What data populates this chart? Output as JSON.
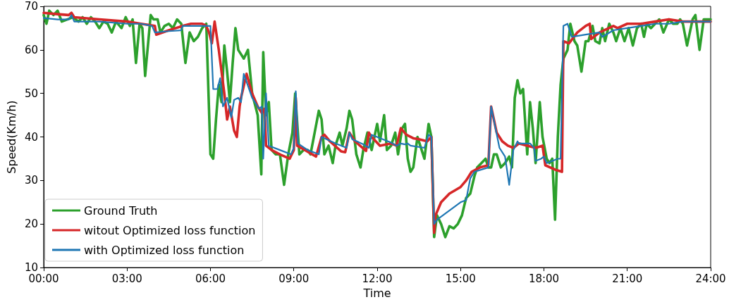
{
  "chart_data": {
    "type": "line",
    "xlabel": "Time",
    "ylabel": "Speed(Km/h)",
    "xlim": [
      0,
      24
    ],
    "ylim": [
      10,
      70
    ],
    "xticks": [
      {
        "value": 0,
        "label": "00:00"
      },
      {
        "value": 3,
        "label": "03:00"
      },
      {
        "value": 6,
        "label": "06:00"
      },
      {
        "value": 9,
        "label": "09:00"
      },
      {
        "value": 12,
        "label": "12:00"
      },
      {
        "value": 15,
        "label": "15:00"
      },
      {
        "value": 18,
        "label": "18:00"
      },
      {
        "value": 21,
        "label": "21:00"
      },
      {
        "value": 24,
        "label": "24:00"
      }
    ],
    "yticks": [
      10,
      20,
      30,
      40,
      50,
      60,
      70
    ],
    "grid": false,
    "legend": "bottom left",
    "marker": "none",
    "line_style": "solid",
    "series": [
      {
        "name": "Ground Truth",
        "color": "#2ca02c",
        "x": [
          0,
          0.1,
          0.2,
          0.35,
          0.5,
          0.65,
          0.85,
          1.05,
          1.25,
          1.4,
          1.55,
          1.7,
          1.85,
          2.0,
          2.15,
          2.3,
          2.45,
          2.6,
          2.8,
          2.95,
          3.1,
          3.2,
          3.32,
          3.45,
          3.55,
          3.65,
          3.85,
          3.95,
          4.1,
          4.2,
          4.35,
          4.5,
          4.65,
          4.8,
          4.95,
          5.1,
          5.25,
          5.4,
          5.55,
          5.7,
          5.85,
          6.0,
          6.1,
          6.2,
          6.3,
          6.4,
          6.5,
          6.6,
          6.7,
          6.8,
          6.9,
          7.0,
          7.2,
          7.35,
          7.5,
          7.7,
          7.83,
          7.9,
          8.0,
          8.1,
          8.2,
          8.35,
          8.5,
          8.65,
          8.8,
          8.95,
          9.05,
          9.2,
          9.35,
          9.5,
          9.6,
          9.75,
          9.9,
          10.0,
          10.1,
          10.25,
          10.4,
          10.5,
          10.65,
          10.75,
          10.9,
          11.0,
          11.1,
          11.25,
          11.4,
          11.5,
          11.65,
          11.8,
          11.9,
          12.0,
          12.1,
          12.25,
          12.35,
          12.5,
          12.65,
          12.75,
          12.9,
          13.0,
          13.1,
          13.2,
          13.3,
          13.45,
          13.6,
          13.7,
          13.85,
          13.95,
          14.05,
          14.15,
          14.3,
          14.45,
          14.6,
          14.75,
          14.9,
          15.05,
          15.2,
          15.35,
          15.5,
          15.6,
          15.75,
          15.9,
          16.0,
          16.1,
          16.2,
          16.3,
          16.45,
          16.6,
          16.75,
          16.85,
          16.95,
          17.05,
          17.15,
          17.25,
          17.4,
          17.5,
          17.6,
          17.7,
          17.85,
          17.95,
          18.1,
          18.2,
          18.3,
          18.4,
          18.5,
          18.6,
          18.7,
          18.85,
          18.95,
          19.1,
          19.2,
          19.35,
          19.5,
          19.6,
          19.75,
          19.85,
          20.0,
          20.1,
          20.2,
          20.35,
          20.5,
          20.6,
          20.75,
          20.9,
          21.05,
          21.2,
          21.35,
          21.5,
          21.6,
          21.7,
          21.85,
          22.0,
          22.15,
          22.3,
          22.5,
          22.65,
          22.8,
          22.9,
          23.0,
          23.15,
          23.35,
          23.45,
          23.6,
          23.75,
          24
        ],
        "values": [
          68,
          66,
          69,
          68,
          69,
          66.5,
          67,
          67.5,
          66.5,
          67.5,
          66,
          67.5,
          66.5,
          65,
          66.5,
          66,
          64,
          66.5,
          65,
          67.5,
          65.5,
          67,
          57,
          66,
          65,
          54,
          68,
          67,
          67,
          64,
          65.5,
          66,
          65,
          67,
          66,
          57,
          64,
          62,
          63,
          65,
          66,
          36,
          35,
          44,
          52,
          48,
          61,
          55,
          48,
          57,
          65,
          60,
          58,
          60,
          50,
          45,
          31.4,
          59.5,
          45,
          48,
          37,
          36,
          36,
          29,
          36,
          41,
          50,
          36,
          37,
          37,
          36,
          41,
          46,
          44,
          36,
          38,
          34,
          38,
          41,
          38,
          42,
          46,
          44,
          36,
          33,
          37,
          41,
          37,
          40,
          43,
          39,
          45,
          37,
          38,
          41,
          36,
          42,
          43,
          35,
          32,
          33,
          40,
          37,
          35,
          43,
          40,
          17,
          22,
          20,
          17,
          19.5,
          19,
          20,
          22,
          26,
          27,
          31,
          33,
          34,
          35,
          33,
          33,
          36,
          36,
          33,
          34,
          35.5,
          33,
          49,
          53,
          50,
          51,
          36,
          48,
          42,
          34,
          48,
          40,
          35,
          34,
          35,
          21,
          40,
          52,
          58,
          60,
          66,
          62,
          61,
          55,
          62,
          62,
          65.5,
          62,
          61.5,
          65,
          62,
          66,
          64,
          62,
          65,
          62,
          65,
          61,
          65,
          66,
          63,
          66,
          65,
          66,
          67,
          64,
          67,
          66,
          66,
          67,
          66,
          61,
          67,
          68,
          60,
          67,
          67
        ]
      },
      {
        "name": "witout Optimized loss function",
        "color": "#d62728",
        "x": [
          0,
          0.5,
          0.9,
          1.0,
          1.1,
          2.0,
          3.0,
          3.5,
          4.0,
          4.05,
          4.5,
          5.0,
          5.3,
          5.7,
          5.85,
          5.95,
          6.05,
          6.15,
          6.3,
          6.5,
          6.6,
          6.7,
          6.85,
          6.95,
          7.05,
          7.1,
          7.3,
          7.5,
          7.7,
          7.85,
          7.95,
          8.0,
          8.2,
          8.5,
          8.85,
          9.0,
          9.07,
          9.12,
          9.4,
          9.8,
          10.0,
          10.1,
          10.3,
          10.7,
          10.85,
          11.0,
          11.2,
          11.6,
          11.7,
          11.8,
          12.1,
          12.5,
          12.7,
          12.85,
          13.05,
          13.3,
          13.5,
          13.8,
          13.95,
          14.05,
          14.1,
          14.3,
          14.6,
          15.0,
          15.2,
          15.4,
          15.7,
          16.0,
          16.1,
          16.3,
          16.5,
          16.7,
          16.9,
          17.1,
          17.4,
          17.7,
          17.95,
          18.05,
          18.4,
          18.65,
          18.7,
          18.9,
          19.2,
          19.5,
          19.65,
          19.7,
          20.0,
          20.5,
          20.65,
          21.0,
          21.5,
          22.0,
          22.5,
          23.0,
          24
        ],
        "values": [
          68.5,
          68.2,
          68,
          68.5,
          67.5,
          67,
          66.5,
          66,
          65.5,
          63.5,
          64.5,
          65.5,
          66,
          66,
          65.5,
          64,
          61.5,
          66.5,
          60,
          50,
          44,
          47,
          41.5,
          40,
          47,
          49,
          54.5,
          50,
          47,
          45.5,
          46.5,
          38,
          37,
          36,
          35,
          37,
          49,
          38,
          37,
          35.5,
          40,
          40.5,
          39,
          36.7,
          36.5,
          41,
          39,
          36.8,
          41,
          40,
          38,
          38.5,
          38,
          42,
          40.5,
          39.7,
          39.5,
          39,
          40,
          18,
          22,
          25,
          27,
          28.5,
          30,
          32,
          33,
          33.5,
          47,
          41,
          39,
          38,
          37.5,
          38.5,
          38,
          37.5,
          38,
          33.5,
          32.5,
          32,
          62,
          61.5,
          64,
          65.5,
          66,
          62.5,
          64,
          65.5,
          65,
          66,
          66,
          66.5,
          67,
          66.5,
          66.5
        ]
      },
      {
        "name": "with Optimized loss function",
        "color": "#1f77b4",
        "x": [
          0,
          0.5,
          0.9,
          1.0,
          1.1,
          2.0,
          3.0,
          3.5,
          3.9,
          4.0,
          4.5,
          4.95,
          5.0,
          5.5,
          6.0,
          6.1,
          6.25,
          6.35,
          6.45,
          6.6,
          6.75,
          6.85,
          7.0,
          7.1,
          7.2,
          7.5,
          7.75,
          7.85,
          7.9,
          8.0,
          8.1,
          8.5,
          8.9,
          9.0,
          9.07,
          9.15,
          9.5,
          9.9,
          10.0,
          10.5,
          10.9,
          11.0,
          11.1,
          11.5,
          11.7,
          11.8,
          12.5,
          12.7,
          12.85,
          13.0,
          13.1,
          13.2,
          13.7,
          13.85,
          13.95,
          14.05,
          14.15,
          15.0,
          15.2,
          15.35,
          15.5,
          16.0,
          16.1,
          16.4,
          16.6,
          16.75,
          16.9,
          17.05,
          17.1,
          17.5,
          17.65,
          17.7,
          17.9,
          18.0,
          18.1,
          18.5,
          18.6,
          18.7,
          18.85,
          18.95,
          19.0,
          19.5,
          20.0,
          20.1,
          20.5,
          21.0,
          21.5,
          22.0,
          22.5,
          23.0,
          24
        ],
        "values": [
          67.3,
          67,
          67,
          68,
          66.5,
          66.5,
          66,
          66,
          65.5,
          64,
          64.3,
          64.5,
          65.5,
          65.5,
          65.5,
          51,
          51,
          53.5,
          47,
          49,
          44.5,
          48.5,
          49,
          48,
          54.5,
          49,
          46.5,
          47,
          35,
          50,
          38,
          37,
          36,
          37.5,
          50.5,
          38.5,
          37,
          36,
          40,
          38.5,
          37.5,
          41,
          39.5,
          38.3,
          37.5,
          40.5,
          38.7,
          38,
          38.5,
          38.3,
          38.5,
          38,
          37.5,
          40.5,
          40,
          20,
          21,
          25,
          25.5,
          30.5,
          32,
          33,
          47,
          37.5,
          35.5,
          29,
          37,
          39,
          38.5,
          38.5,
          37.5,
          34.5,
          35,
          35.5,
          34,
          35,
          35,
          65.5,
          66,
          64,
          63,
          63.5,
          64,
          63,
          64.5,
          65,
          65.5,
          66,
          66,
          66.5,
          66.5
        ]
      }
    ]
  }
}
